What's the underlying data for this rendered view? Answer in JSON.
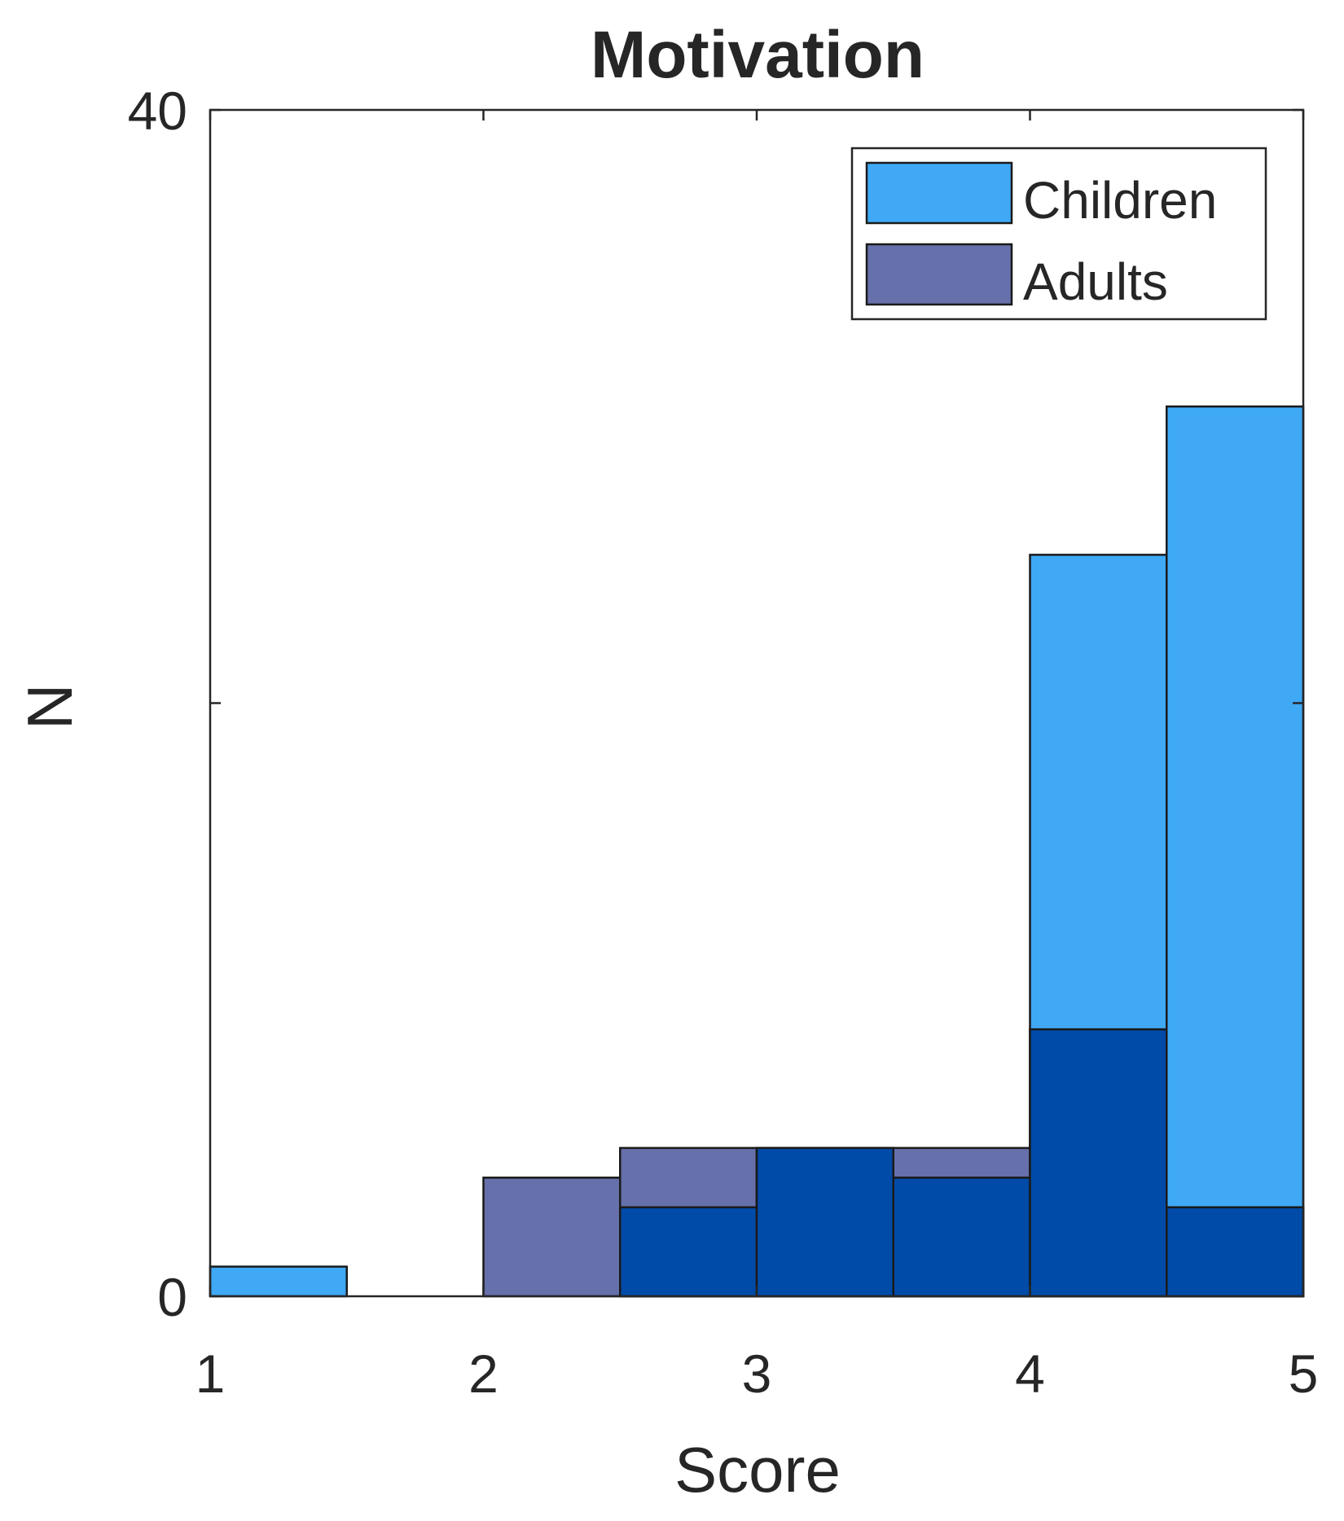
{
  "chart_data": {
    "type": "bar",
    "subtype": "overlapping-histogram",
    "title": "Motivation",
    "xlabel": "Score",
    "ylabel": "N",
    "xlim": [
      1,
      5
    ],
    "ylim": [
      0,
      40
    ],
    "xticks": [
      1,
      2,
      3,
      4,
      5
    ],
    "xtick_labels": [
      "1",
      "2",
      "3",
      "4",
      "5"
    ],
    "yticks": [
      0,
      20,
      40
    ],
    "ytick_labels": [
      "0",
      "",
      "40"
    ],
    "bin_edges": [
      1,
      1.5,
      2,
      2.5,
      3,
      3.5,
      4,
      4.5,
      5
    ],
    "series": [
      {
        "name": "Children",
        "color": "#3fa9f5",
        "values": [
          1,
          0,
          0,
          3,
          5,
          4,
          25,
          30
        ]
      },
      {
        "name": "Adults",
        "color": "#6670ab",
        "values": [
          0,
          0,
          4,
          5,
          5,
          5,
          9,
          3
        ]
      }
    ],
    "overlap_color": "#004ba8",
    "legend": {
      "position": "top-right",
      "entries": [
        "Children",
        "Adults"
      ]
    },
    "grid": false
  }
}
